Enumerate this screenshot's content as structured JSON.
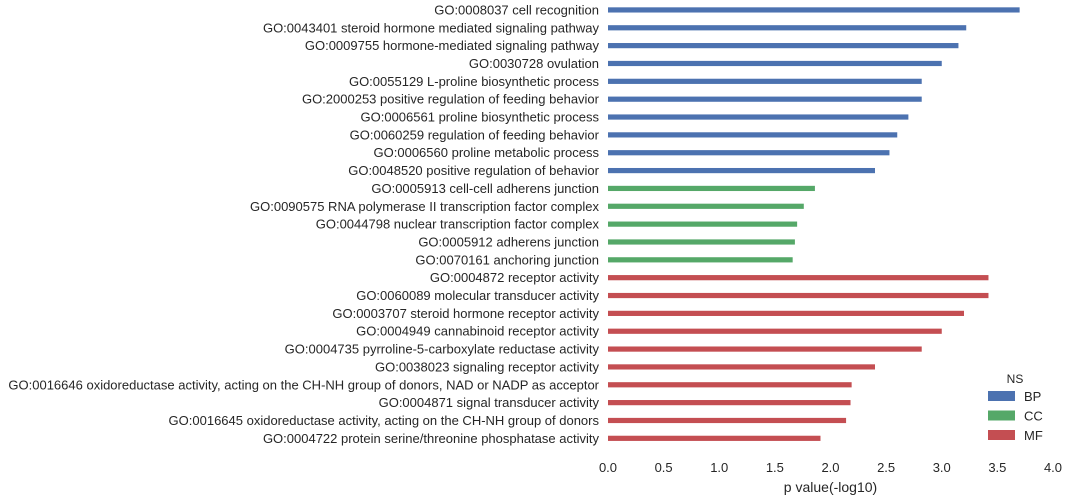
{
  "chart_data": {
    "type": "bar",
    "orientation": "horizontal",
    "xlabel": "p value(-log10)",
    "xlim": [
      0,
      4
    ],
    "xticks": [
      "0.0",
      "0.5",
      "1.0",
      "1.5",
      "2.0",
      "2.5",
      "3.0",
      "3.5",
      "4.0"
    ],
    "grid": false,
    "legend": {
      "title": "NS",
      "placement": "bottom-right",
      "entries": [
        {
          "name": "BP",
          "color": "#4c72b0"
        },
        {
          "name": "CC",
          "color": "#55a868"
        },
        {
          "name": "MF",
          "color": "#c44e52"
        }
      ]
    },
    "categories": [
      "GO:0008037 cell recognition",
      "GO:0043401 steroid hormone mediated signaling pathway",
      "GO:0009755 hormone-mediated signaling pathway",
      "GO:0030728 ovulation",
      "GO:0055129 L-proline biosynthetic process",
      "GO:2000253 positive regulation of feeding behavior",
      "GO:0006561 proline biosynthetic process",
      "GO:0060259 regulation of feeding behavior",
      "GO:0006560 proline metabolic process",
      "GO:0048520 positive regulation of behavior",
      "GO:0005913 cell-cell adherens junction",
      "GO:0090575 RNA polymerase II transcription factor complex",
      "GO:0044798 nuclear transcription factor complex",
      "GO:0005912 adherens junction",
      "GO:0070161 anchoring junction",
      "GO:0004872 receptor activity",
      "GO:0060089 molecular transducer activity",
      "GO:0003707 steroid hormone receptor activity",
      "GO:0004949 cannabinoid receptor activity",
      "GO:0004735 pyrroline-5-carboxylate reductase activity",
      "GO:0038023 signaling receptor activity",
      "GO:0016646 oxidoreductase activity, acting on the CH-NH group of donors, NAD or NADP as acceptor",
      "GO:0004871 signal transducer activity",
      "GO:0016645 oxidoreductase activity, acting on the CH-NH group of donors",
      "GO:0004722 protein serine/threonine phosphatase activity"
    ],
    "groups": [
      "BP",
      "BP",
      "BP",
      "BP",
      "BP",
      "BP",
      "BP",
      "BP",
      "BP",
      "BP",
      "CC",
      "CC",
      "CC",
      "CC",
      "CC",
      "MF",
      "MF",
      "MF",
      "MF",
      "MF",
      "MF",
      "MF",
      "MF",
      "MF",
      "MF"
    ],
    "values": [
      3.7,
      3.22,
      3.15,
      3.0,
      2.82,
      2.82,
      2.7,
      2.6,
      2.53,
      2.4,
      1.86,
      1.76,
      1.7,
      1.68,
      1.66,
      3.42,
      3.42,
      3.2,
      3.0,
      2.82,
      2.4,
      2.19,
      2.18,
      2.14,
      1.91
    ]
  }
}
